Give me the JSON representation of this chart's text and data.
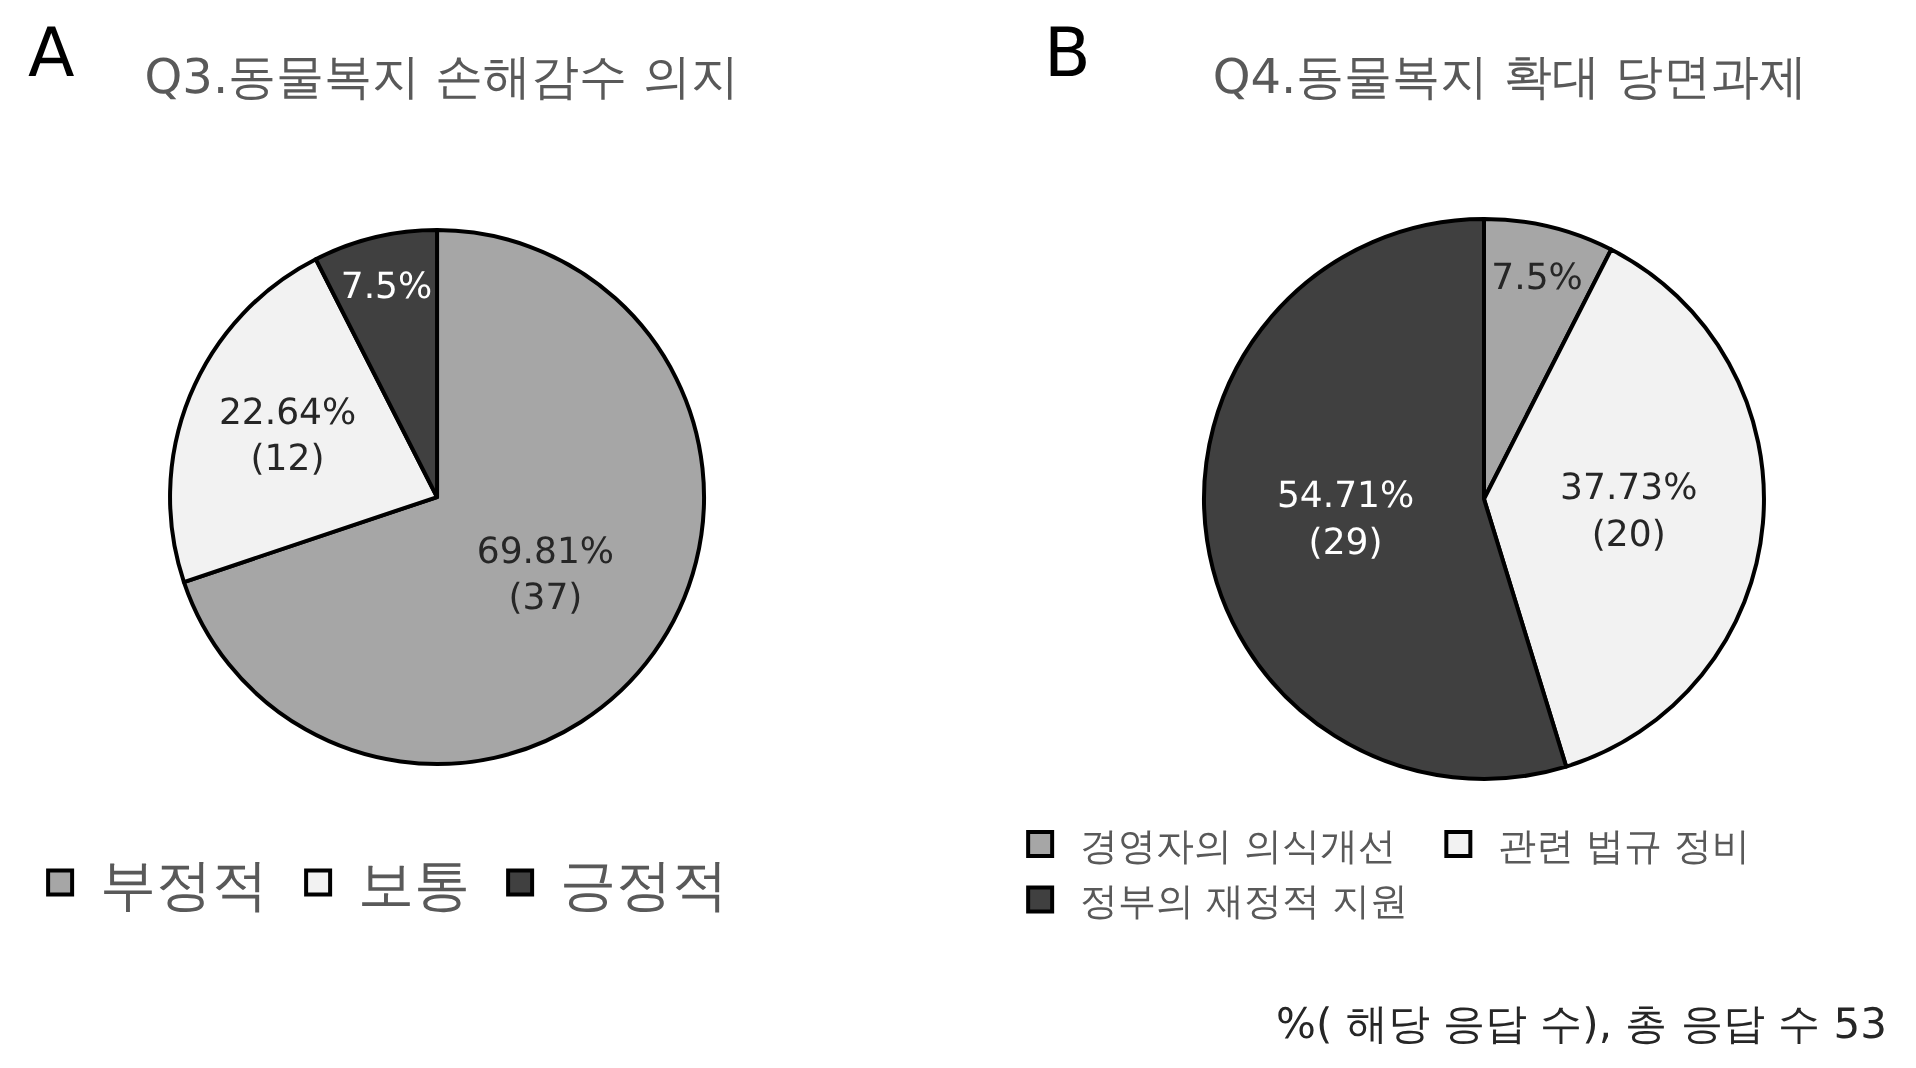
{
  "chart_data": [
    {
      "type": "pie",
      "title": "Q3.동물복지 손해감수 의지",
      "categories": [
        "부정적",
        "보통",
        "긍정적"
      ],
      "values": [
        69.81,
        22.64,
        7.5
      ],
      "colors": [
        "#a6a6a6",
        "#f2f2f2",
        "#404040"
      ],
      "value_labels": [
        "69.81%\n(37)",
        "22.64%\n(12)",
        "7.5%"
      ],
      "legend": "bottom",
      "annotations": [
        "A"
      ]
    },
    {
      "type": "pie",
      "title": "Q4.동물복지 확대 당면과제",
      "categories": [
        "경영자의 의식개선",
        "관련 법규 정비",
        "정부의 재정적 지원"
      ],
      "values": [
        7.5,
        37.73,
        54.71
      ],
      "colors": [
        "#a6a6a6",
        "#f2f2f2",
        "#404040"
      ],
      "value_labels": [
        "7.5%",
        "37.73%\n(20)",
        "54.71%\n(29)"
      ],
      "legend": "bottom",
      "annotations": [
        "B",
        "%( 해당 응답 수), 총 응답 수 53"
      ]
    }
  ]
}
